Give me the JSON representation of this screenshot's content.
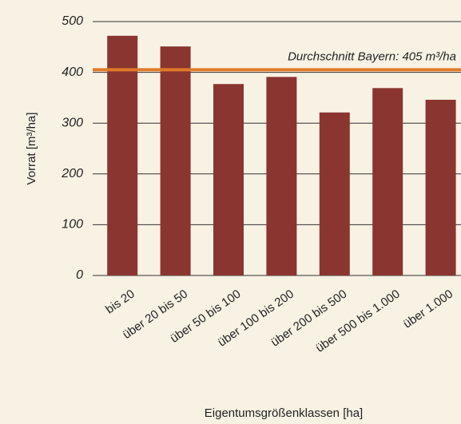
{
  "chart_data": {
    "type": "bar",
    "categories": [
      "bis 20",
      "über 20 bis 50",
      "über 50 bis 100",
      "über 100 bis 200",
      "über 200 bis 500",
      "über 500 bis 1.000",
      "über 1.000"
    ],
    "values": [
      472,
      451,
      377,
      391,
      321,
      369,
      346
    ],
    "color": "#8b3530",
    "ylabel": "Vorrat [m³/ha]",
    "xlabel": "Eigentumsgrößenklassen [ha]",
    "ylim": [
      0,
      500
    ],
    "yticks": [
      0,
      100,
      200,
      300,
      400,
      500
    ],
    "grid": true,
    "reference_line": {
      "value": 405,
      "color": "#e07a2a",
      "label": "Durchschnitt Bayern: 405 m³/ha"
    }
  }
}
